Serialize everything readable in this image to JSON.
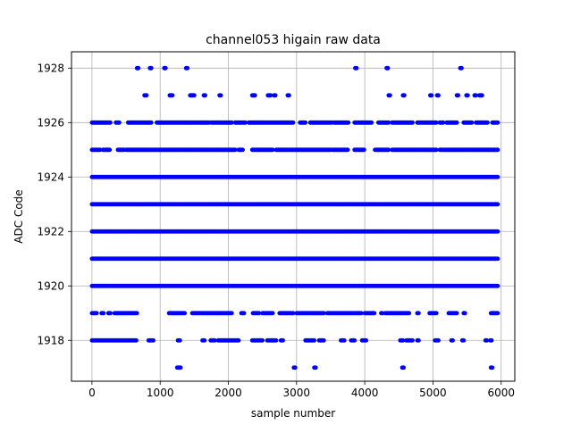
{
  "chart_data": {
    "type": "scatter",
    "title": "channel053 higain raw data",
    "xlabel": "sample number",
    "ylabel": "ADC Code",
    "xlim": [
      -300,
      6200
    ],
    "ylim": [
      1916.5,
      1928.6
    ],
    "xticks": [
      0,
      1000,
      2000,
      3000,
      4000,
      5000,
      6000
    ],
    "yticks": [
      1918,
      1920,
      1922,
      1924,
      1926,
      1928
    ],
    "grid": true,
    "color": "#0000ff",
    "series": [
      {
        "levels": [
          {
            "y": 1918,
            "ranges": [
              [
                0,
                650
              ],
              [
                830,
                900
              ],
              [
                1260,
                1290
              ],
              [
                1620,
                1650
              ],
              [
                1740,
                1800
              ],
              [
                1850,
                2150
              ],
              [
                2350,
                2500
              ],
              [
                2570,
                2700
              ],
              [
                2770,
                2800
              ],
              [
                3130,
                3260
              ],
              [
                3330,
                3400
              ],
              [
                3650,
                3700
              ],
              [
                3800,
                3850
              ],
              [
                3960,
                4020
              ],
              [
                4520,
                4560
              ],
              [
                4610,
                4700
              ],
              [
                4770,
                4790
              ],
              [
                5030,
                5080
              ],
              [
                5270,
                5290
              ],
              [
                5430,
                5450
              ],
              [
                5770,
                5790
              ],
              [
                5840,
                5860
              ]
            ]
          },
          {
            "y": 1919,
            "ranges": [
              [
                0,
                70
              ],
              [
                140,
                170
              ],
              [
                240,
                270
              ],
              [
                330,
                660
              ],
              [
                1130,
                1360
              ],
              [
                1470,
                1580
              ],
              [
                1600,
                2050
              ],
              [
                2190,
                2230
              ],
              [
                2360,
                2450
              ],
              [
                2500,
                2650
              ],
              [
                2750,
                2950
              ],
              [
                3000,
                3400
              ],
              [
                3450,
                3950
              ],
              [
                4000,
                4140
              ],
              [
                4240,
                4260
              ],
              [
                4300,
                4650
              ],
              [
                4770,
                4790
              ],
              [
                4950,
                5050
              ],
              [
                5230,
                5350
              ],
              [
                5450,
                5470
              ],
              [
                5850,
                5950
              ]
            ]
          },
          {
            "y": 1920,
            "ranges": [
              [
                0,
                5950
              ]
            ]
          },
          {
            "y": 1921,
            "ranges": [
              [
                0,
                5950
              ]
            ]
          },
          {
            "y": 1922,
            "ranges": [
              [
                0,
                5950
              ]
            ]
          },
          {
            "y": 1923,
            "ranges": [
              [
                0,
                5950
              ]
            ]
          },
          {
            "y": 1924,
            "ranges": [
              [
                0,
                5950
              ]
            ]
          },
          {
            "y": 1925,
            "ranges": [
              [
                0,
                120
              ],
              [
                160,
                260
              ],
              [
                380,
                470
              ],
              [
                500,
                2100
              ],
              [
                2150,
                2210
              ],
              [
                2350,
                2650
              ],
              [
                2700,
                3500
              ],
              [
                3530,
                3750
              ],
              [
                3850,
                3990
              ],
              [
                4150,
                4350
              ],
              [
                4400,
                5050
              ],
              [
                5100,
                5950
              ]
            ]
          },
          {
            "y": 1926,
            "ranges": [
              [
                0,
                270
              ],
              [
                350,
                400
              ],
              [
                530,
                870
              ],
              [
                950,
                1720
              ],
              [
                1750,
                2050
              ],
              [
                2100,
                2250
              ],
              [
                2300,
                2950
              ],
              [
                3050,
                3130
              ],
              [
                3200,
                3520
              ],
              [
                3550,
                3760
              ],
              [
                3850,
                4100
              ],
              [
                4200,
                4350
              ],
              [
                4400,
                4700
              ],
              [
                4770,
                5050
              ],
              [
                5100,
                5150
              ],
              [
                5200,
                5350
              ],
              [
                5450,
                5570
              ],
              [
                5630,
                5800
              ],
              [
                5870,
                5950
              ]
            ]
          },
          {
            "y": 1927,
            "ranges": [
              [
                770,
                800
              ],
              [
                1140,
                1180
              ],
              [
                1440,
                1500
              ],
              [
                1640,
                1660
              ],
              [
                1870,
                1890
              ],
              [
                2350,
                2390
              ],
              [
                2580,
                2620
              ],
              [
                2670,
                2690
              ],
              [
                2870,
                2890
              ],
              [
                4350,
                4370
              ],
              [
                4560,
                4580
              ],
              [
                4960,
                4980
              ],
              [
                5060,
                5080
              ],
              [
                5350,
                5370
              ],
              [
                5490,
                5510
              ],
              [
                5610,
                5630
              ],
              [
                5680,
                5720
              ]
            ]
          },
          {
            "y": 1928,
            "ranges": [
              [
                660,
                680
              ],
              [
                850,
                870
              ],
              [
                1060,
                1080
              ],
              [
                1380,
                1400
              ],
              [
                3860,
                3880
              ],
              [
                4320,
                4340
              ],
              [
                5400,
                5420
              ]
            ]
          },
          {
            "y": 1917,
            "ranges": [
              [
                1250,
                1270
              ],
              [
                1280,
                1300
              ],
              [
                2960,
                2980
              ],
              [
                3260,
                3280
              ],
              [
                4550,
                4570
              ],
              [
                5850,
                5870
              ]
            ]
          }
        ]
      }
    ]
  }
}
